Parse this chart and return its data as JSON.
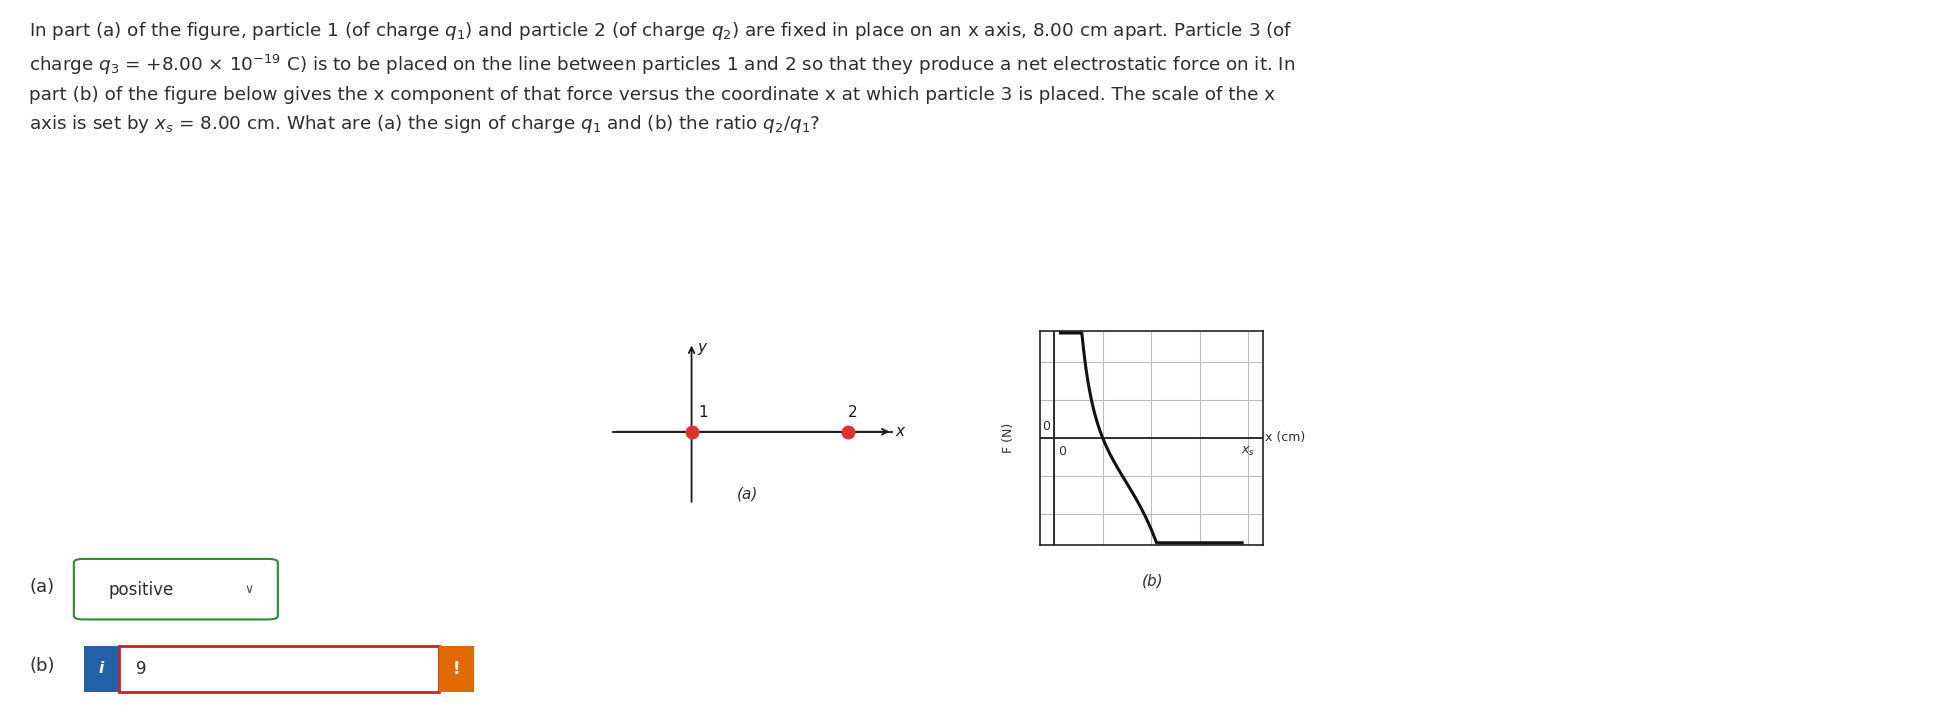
{
  "background_color": "#ffffff",
  "text_color": "#2d2d2d",
  "answer_a_value": "positive",
  "answer_b_value": "9",
  "diagram_a": {
    "particle_color": "#e03030",
    "axis_color": "#1a1a1a",
    "label1": "1",
    "label2": "2",
    "x_label": "x",
    "y_label": "y"
  },
  "diagram_b": {
    "curve_color": "#111111",
    "axis_label_x": "x (cm)",
    "axis_label_y": "F (N)",
    "grid_color": "#bbbbbb",
    "border_color": "#222222",
    "background": "#ffffff"
  },
  "fig_a_italic_label": "(a)",
  "fig_b_italic_label": "(b)",
  "answer_a_box_color": "#2d8a2d",
  "answer_b_border_color": "#cc2222",
  "blue_i_color": "#2460a7",
  "orange_excl_color": "#e06a00"
}
